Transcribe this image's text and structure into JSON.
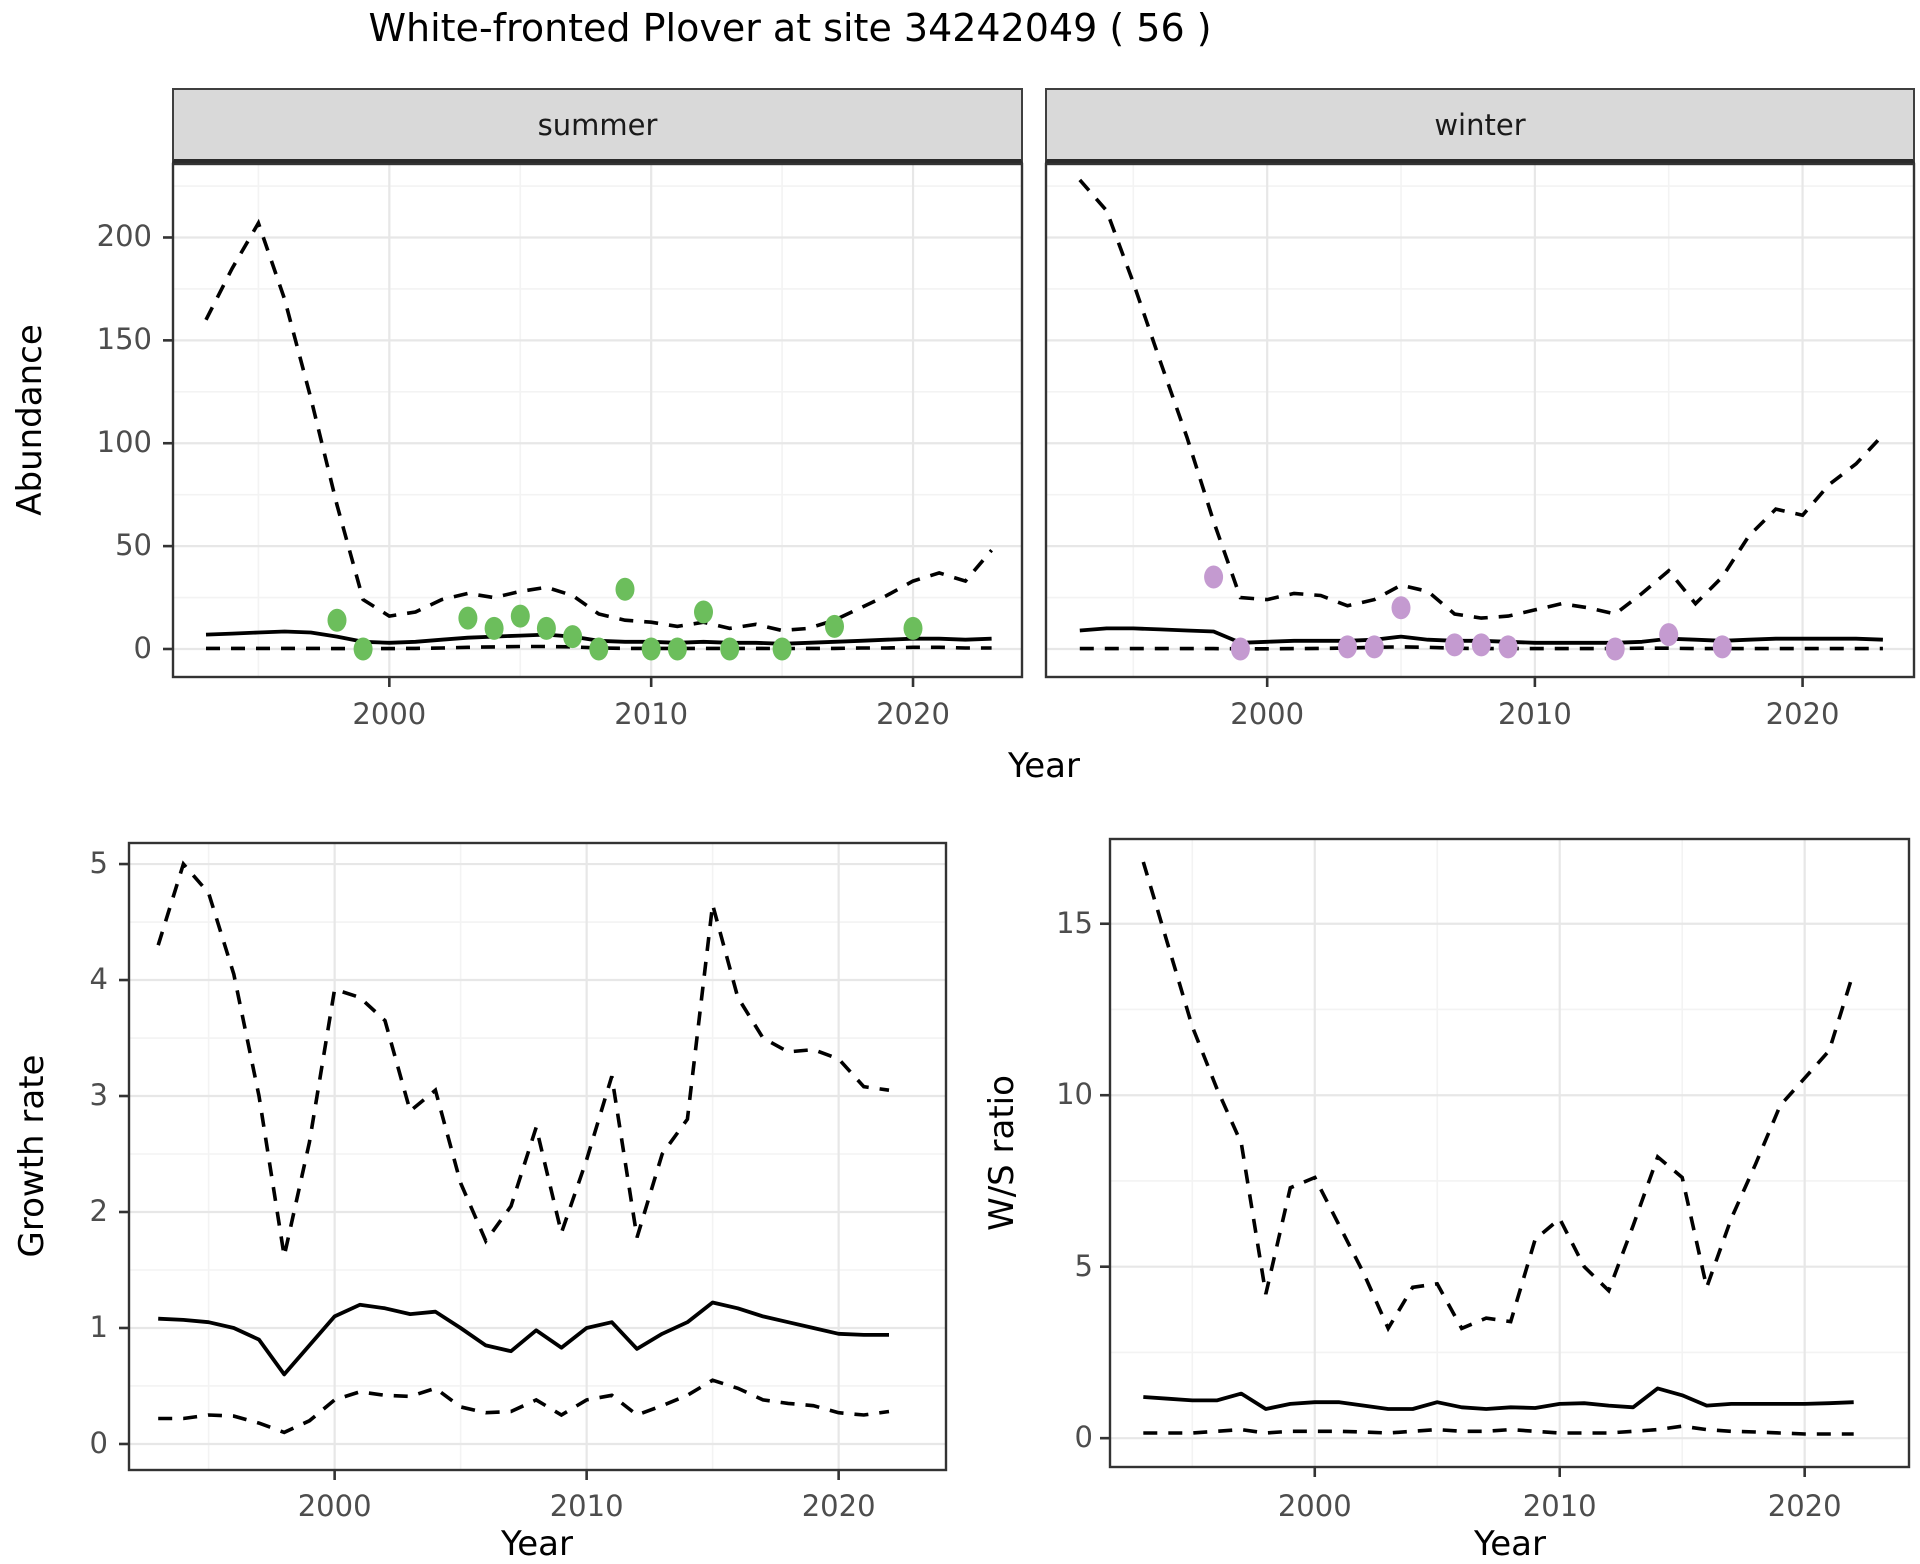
{
  "figure_title": "White-fronted Plover at site 34242049 ( 56 )",
  "colors": {
    "summer_point": "#6cbe5c",
    "winter_point": "#c49ad0",
    "line": "#000000",
    "grid_major": "#e7e7e7",
    "grid_minor": "#f3f3f3",
    "panel_border": "#333333",
    "strip_bg": "#d9d9d9",
    "tick_text": "#4d4d4d"
  },
  "chart_data": {
    "figure_title": "White-fronted Plover at site 34242049 ( 56 )",
    "description": "Modelled abundance (solid median, dashed 95% CI) with observed counts as points; growth rate and winter/summer ratio below.",
    "panels": [
      {
        "key": "abundance_summer",
        "type": "line",
        "facet_label": "summer",
        "ylabel": "Abundance",
        "xlabel": "Year",
        "yticks": [
          0,
          50,
          100,
          150,
          200
        ],
        "yticks_minor": [
          25,
          75,
          125,
          175,
          225
        ],
        "xticks": [
          2000,
          2010,
          2020
        ],
        "xticks_minor": [
          1995,
          2005,
          2015
        ],
        "years": [
          1993,
          1994,
          1995,
          1996,
          1997,
          1998,
          1999,
          2000,
          2001,
          2002,
          2003,
          2004,
          2005,
          2006,
          2007,
          2008,
          2009,
          2010,
          2011,
          2012,
          2013,
          2014,
          2015,
          2016,
          2017,
          2018,
          2019,
          2020,
          2021,
          2022,
          2023
        ],
        "upper_ci": [
          160,
          185,
          207,
          170,
          122,
          70,
          24,
          16,
          18,
          24,
          27,
          25,
          28,
          30,
          26,
          17,
          14,
          13,
          11,
          13,
          10,
          12,
          9,
          10,
          14,
          20,
          26,
          33,
          37,
          33,
          48
        ],
        "median": [
          7,
          7.5,
          8,
          8.5,
          8,
          6,
          3.5,
          3,
          3.5,
          4.5,
          5.5,
          6,
          6.5,
          7,
          6,
          4,
          3.5,
          3.5,
          3,
          3.5,
          3,
          3,
          2.5,
          3,
          3.5,
          4,
          4.5,
          5,
          5,
          4.5,
          5
        ],
        "lower_ci": [
          0.3,
          0.3,
          0.3,
          0.3,
          0.3,
          0.2,
          0.2,
          0.2,
          0.3,
          0.5,
          0.8,
          1,
          1.2,
          1.2,
          1,
          0.5,
          0.3,
          0.3,
          0.3,
          0.3,
          0.3,
          0.3,
          0.2,
          0.3,
          0.3,
          0.5,
          0.5,
          0.8,
          0.8,
          0.5,
          0.5
        ],
        "observations": [
          [
            1998,
            14
          ],
          [
            1999,
            0
          ],
          [
            2003,
            15
          ],
          [
            2004,
            10
          ],
          [
            2005,
            16
          ],
          [
            2006,
            10
          ],
          [
            2007,
            6
          ],
          [
            2008,
            0
          ],
          [
            2009,
            29
          ],
          [
            2010,
            0
          ],
          [
            2011,
            0
          ],
          [
            2012,
            18
          ],
          [
            2013,
            0
          ],
          [
            2015,
            0
          ],
          [
            2017,
            11
          ],
          [
            2020,
            10
          ]
        ],
        "point_color": "#6cbe5c"
      },
      {
        "key": "abundance_winter",
        "type": "line",
        "facet_label": "winter",
        "ylabel": "Abundance",
        "xlabel": "Year",
        "yticks": [
          0,
          50,
          100,
          150,
          200
        ],
        "yticks_minor": [
          25,
          75,
          125,
          175,
          225
        ],
        "xticks": [
          2000,
          2010,
          2020
        ],
        "xticks_minor": [
          1995,
          2005,
          2015
        ],
        "years": [
          1993,
          1994,
          1995,
          1996,
          1997,
          1998,
          1999,
          2000,
          2001,
          2002,
          2003,
          2004,
          2005,
          2006,
          2007,
          2008,
          2009,
          2010,
          2011,
          2012,
          2013,
          2014,
          2015,
          2016,
          2017,
          2018,
          2019,
          2020,
          2021,
          2022,
          2023
        ],
        "upper_ci": [
          228,
          213,
          178,
          140,
          103,
          62,
          25,
          24,
          27,
          26,
          21,
          24,
          31,
          28,
          17,
          15,
          16,
          19,
          22,
          20,
          17,
          27,
          38,
          22,
          35,
          55,
          68,
          65,
          80,
          90,
          104
        ],
        "median": [
          9,
          10,
          10,
          9.5,
          9,
          8.5,
          3,
          3.5,
          4,
          4,
          4,
          4.5,
          6,
          4.5,
          4,
          4,
          3.5,
          3,
          3,
          3,
          3,
          3.5,
          5,
          4.5,
          4,
          4.5,
          5,
          5,
          5,
          5,
          4.5
        ],
        "lower_ci": [
          0.2,
          0.2,
          0.2,
          0.2,
          0.2,
          0.2,
          0.1,
          0.1,
          0.2,
          0.3,
          0.5,
          0.8,
          1,
          0.8,
          0.4,
          0.2,
          0.2,
          0.2,
          0.2,
          0.2,
          0.2,
          0.4,
          0.4,
          0.2,
          0.2,
          0.2,
          0.2,
          0.2,
          0.2,
          0.2,
          0.2
        ],
        "observations": [
          [
            1998,
            35
          ],
          [
            1999,
            0
          ],
          [
            2003,
            1
          ],
          [
            2004,
            1
          ],
          [
            2005,
            20
          ],
          [
            2007,
            2
          ],
          [
            2008,
            2
          ],
          [
            2009,
            1
          ],
          [
            2013,
            0
          ],
          [
            2015,
            7
          ],
          [
            2017,
            1
          ]
        ],
        "point_color": "#c49ad0"
      },
      {
        "key": "growth_rate",
        "type": "line",
        "facet_label": "",
        "ylabel": "Growth rate",
        "xlabel": "Year",
        "yticks": [
          0,
          1,
          2,
          3,
          4,
          5
        ],
        "yticks_minor": [
          0.5,
          1.5,
          2.5,
          3.5,
          4.5
        ],
        "xticks": [
          2000,
          2010,
          2020
        ],
        "xticks_minor": [
          1995,
          2005,
          2015
        ],
        "years": [
          1993,
          1994,
          1995,
          1996,
          1997,
          1998,
          1999,
          2000,
          2001,
          2002,
          2003,
          2004,
          2005,
          2006,
          2007,
          2008,
          2009,
          2010,
          2011,
          2012,
          2013,
          2014,
          2015,
          2016,
          2017,
          2018,
          2019,
          2020,
          2021,
          2022
        ],
        "upper_ci": [
          4.3,
          5.0,
          4.75,
          4.05,
          3.0,
          1.62,
          2.6,
          3.92,
          3.85,
          3.65,
          2.87,
          3.05,
          2.25,
          1.75,
          2.05,
          2.73,
          1.82,
          2.45,
          3.17,
          1.78,
          2.5,
          2.8,
          4.65,
          3.85,
          3.5,
          3.38,
          3.4,
          3.32,
          3.08,
          3.05
        ],
        "median": [
          1.08,
          1.07,
          1.05,
          1.0,
          0.9,
          0.6,
          0.85,
          1.1,
          1.2,
          1.17,
          1.12,
          1.14,
          1.0,
          0.85,
          0.8,
          0.98,
          0.83,
          1.0,
          1.05,
          0.82,
          0.95,
          1.05,
          1.22,
          1.17,
          1.1,
          1.05,
          1.0,
          0.95,
          0.94,
          0.94
        ],
        "lower_ci": [
          0.22,
          0.22,
          0.25,
          0.24,
          0.18,
          0.1,
          0.2,
          0.38,
          0.45,
          0.42,
          0.41,
          0.48,
          0.32,
          0.27,
          0.28,
          0.38,
          0.25,
          0.38,
          0.42,
          0.25,
          0.33,
          0.42,
          0.55,
          0.48,
          0.38,
          0.35,
          0.33,
          0.27,
          0.25,
          0.28
        ],
        "observations": [],
        "point_color": "#000000"
      },
      {
        "key": "ws_ratio",
        "type": "line",
        "facet_label": "",
        "ylabel": "W/S ratio",
        "xlabel": "Year",
        "yticks": [
          0,
          5,
          10,
          15
        ],
        "yticks_minor": [
          2.5,
          7.5,
          12.5
        ],
        "xticks": [
          2000,
          2010,
          2020
        ],
        "xticks_minor": [
          1995,
          2005,
          2015
        ],
        "years": [
          1993,
          1994,
          1995,
          1996,
          1997,
          1998,
          1999,
          2000,
          2001,
          2002,
          2003,
          2004,
          2005,
          2006,
          2007,
          2008,
          2009,
          2010,
          2011,
          2012,
          2013,
          2014,
          2015,
          2016,
          2017,
          2018,
          2019,
          2020,
          2021,
          2022
        ],
        "upper_ci": [
          16.8,
          14.4,
          12.0,
          10.2,
          8.6,
          4.2,
          7.3,
          7.6,
          6.2,
          4.8,
          3.2,
          4.4,
          4.5,
          3.2,
          3.5,
          3.4,
          5.8,
          6.4,
          5.0,
          4.3,
          6.2,
          8.2,
          7.6,
          4.4,
          6.4,
          8.0,
          9.7,
          10.5,
          11.3,
          13.6
        ],
        "median": [
          1.2,
          1.15,
          1.1,
          1.1,
          1.3,
          0.85,
          1.0,
          1.05,
          1.05,
          0.95,
          0.85,
          0.85,
          1.05,
          0.9,
          0.85,
          0.9,
          0.88,
          1.0,
          1.02,
          0.95,
          0.9,
          1.45,
          1.25,
          0.95,
          1.0,
          1.0,
          1.0,
          1.0,
          1.02,
          1.05
        ],
        "lower_ci": [
          0.15,
          0.15,
          0.15,
          0.2,
          0.25,
          0.15,
          0.2,
          0.2,
          0.2,
          0.18,
          0.15,
          0.2,
          0.25,
          0.2,
          0.2,
          0.25,
          0.2,
          0.15,
          0.15,
          0.15,
          0.2,
          0.25,
          0.35,
          0.25,
          0.2,
          0.18,
          0.15,
          0.12,
          0.12,
          0.12
        ],
        "observations": [],
        "point_color": "#000000"
      }
    ]
  }
}
